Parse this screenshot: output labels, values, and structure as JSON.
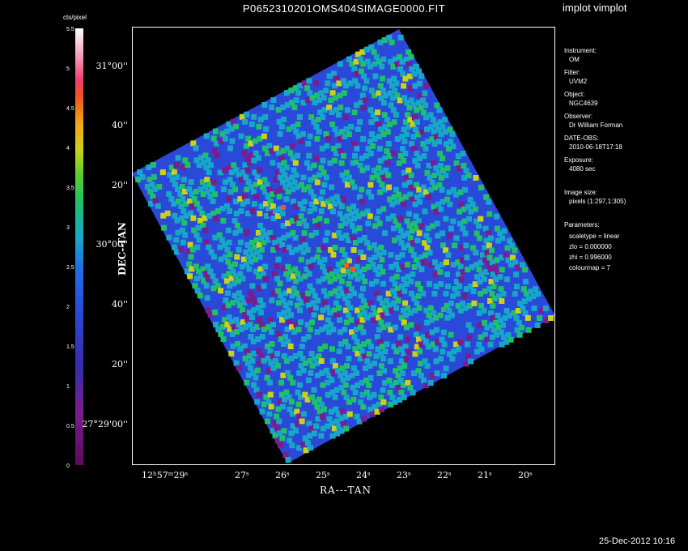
{
  "title": "P0652310201OMS404SIMAGE0000.FIT",
  "tool_name": "implot vimplot",
  "timestamp": "25-Dec-2012 10:16",
  "colorbar": {
    "label": "cts/pixel",
    "ticks": [
      "0",
      "0.5",
      "1",
      "1.5",
      "2",
      "2.5",
      "3",
      "3.5",
      "4",
      "4.5",
      "5",
      "5.5"
    ],
    "colors": [
      "#5a0a5a",
      "#7a1d8e",
      "#2a49d8",
      "#18a6c8",
      "#1ec06a",
      "#c8d21a",
      "#f05a1a",
      "#ffffff"
    ]
  },
  "axes": {
    "xlabel": "RA---TAN",
    "ylabel": "DEC--TAN",
    "xticks": [
      "12ʰ57ᵐ29ˢ",
      "27ˢ",
      "26ˢ",
      "25ˢ",
      "24ˢ",
      "23ˢ",
      "22ˢ",
      "21ˢ",
      "20ˢ"
    ],
    "yticks": [
      "31°00''",
      "40''",
      "20''",
      "30°00''",
      "40''",
      "20''",
      "27°29'00''"
    ]
  },
  "info": {
    "instrument_label": "Instrument:",
    "instrument": "OM",
    "filter_label": "Filter:",
    "filter": "UVM2",
    "object_label": "Object:",
    "object": "NGC4639",
    "observer_label": "Observer:",
    "observer": "Dr William Forman",
    "date_label": "DATE-OBS:",
    "date": "2010-06-18T17:18",
    "exposure_label": "Exposure:",
    "exposure": "4080 sec",
    "size_label": "Image size:",
    "size": "pixels (1:297,1:305)",
    "params_label": "Parameters:",
    "param_scale": "scaletype = linear",
    "param_zlo": "zlo = 0.000000",
    "param_zhi": "zhi = 0.996000",
    "param_cmap": "colourmap =   7"
  }
}
